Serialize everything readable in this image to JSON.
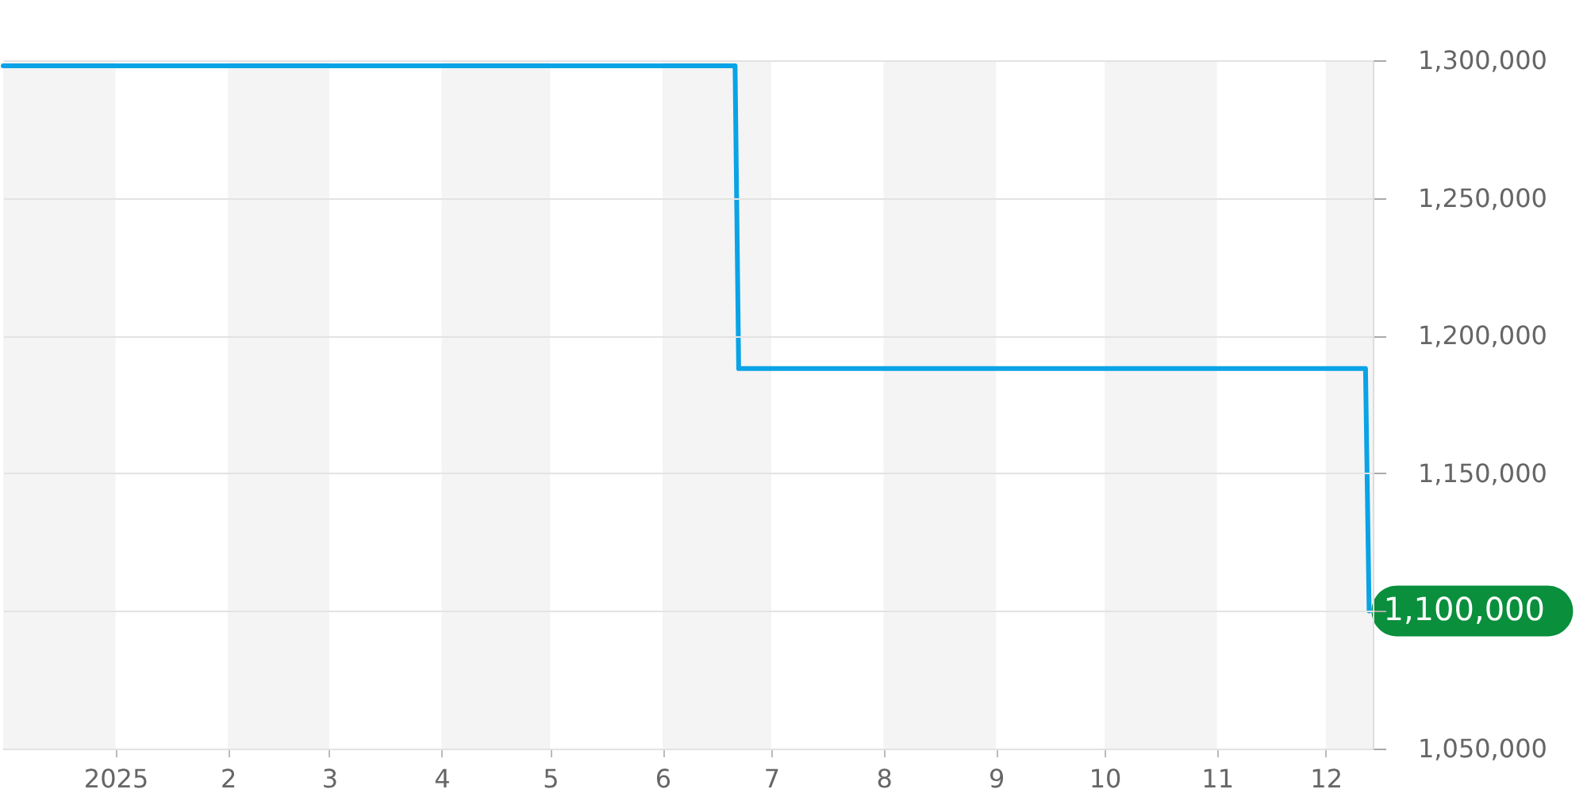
{
  "chart_data": {
    "type": "line",
    "x": [
      "2024-12-01",
      "2025-06-21",
      "2025-06-22",
      "2025-12-12",
      "2025-12-13"
    ],
    "series": [
      {
        "color": "#0aa3e6",
        "values": [
          1298000,
          1298000,
          1188000,
          1188000,
          1100000
        ],
        "value_labels": [
          null,
          null,
          null,
          null,
          "1,100,000"
        ]
      }
    ],
    "xlim": [
      "2024-12-01",
      "2025-12-14"
    ],
    "xticks": [
      {
        "value": "2025-01-01",
        "label": "2025"
      },
      {
        "value": "2025-02-01",
        "label": "2"
      },
      {
        "value": "2025-03-01",
        "label": "3"
      },
      {
        "value": "2025-04-01",
        "label": "4"
      },
      {
        "value": "2025-05-01",
        "label": "5"
      },
      {
        "value": "2025-06-01",
        "label": "6"
      },
      {
        "value": "2025-07-01",
        "label": "7"
      },
      {
        "value": "2025-08-01",
        "label": "8"
      },
      {
        "value": "2025-09-01",
        "label": "9"
      },
      {
        "value": "2025-10-01",
        "label": "10"
      },
      {
        "value": "2025-11-01",
        "label": "11"
      },
      {
        "value": "2025-12-01",
        "label": "12"
      }
    ],
    "ylim": [
      1050000,
      1300000
    ],
    "yticks": [
      {
        "value": 1050000,
        "label": "1,050,000"
      },
      {
        "value": 1100000,
        "label": null
      },
      {
        "value": 1150000,
        "label": "1,150,000"
      },
      {
        "value": 1200000,
        "label": "1,200,000"
      },
      {
        "value": 1250000,
        "label": "1,250,000"
      },
      {
        "value": 1300000,
        "label": "1,300,000"
      }
    ],
    "grid": "y",
    "legend": false,
    "marker": "none",
    "line_style": "solid",
    "bands": [
      {
        "axis": "x",
        "from": "2024-12-01",
        "to": "2025-01-01",
        "color": "#f4f4f4"
      },
      {
        "axis": "x",
        "from": "2025-02-01",
        "to": "2025-03-01",
        "color": "#f4f4f4"
      },
      {
        "axis": "x",
        "from": "2025-04-01",
        "to": "2025-05-01",
        "color": "#f4f4f4"
      },
      {
        "axis": "x",
        "from": "2025-06-01",
        "to": "2025-07-01",
        "color": "#f4f4f4"
      },
      {
        "axis": "x",
        "from": "2025-08-01",
        "to": "2025-09-01",
        "color": "#f4f4f4"
      },
      {
        "axis": "x",
        "from": "2025-10-01",
        "to": "2025-11-01",
        "color": "#f4f4f4"
      },
      {
        "axis": "x",
        "from": "2025-12-01",
        "to": "2025-12-14",
        "color": "#f4f4f4"
      }
    ]
  }
}
